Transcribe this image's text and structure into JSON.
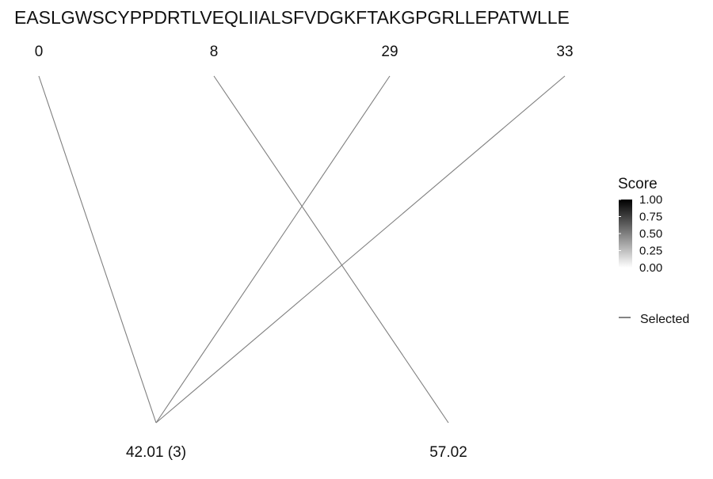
{
  "chart_data": {
    "type": "line",
    "title": "EASLGWSCYPPDRTLVEQLIIALSFVDGKFTAKGPGRLLEPATWLLE",
    "top_axis": {
      "labels": [
        "0",
        "8",
        "29",
        "33"
      ]
    },
    "bottom_axis": {
      "labels": [
        "42.01 (3)",
        "57.02"
      ]
    },
    "connections": [
      {
        "from": "0",
        "to": "42.01 (3)",
        "score": 0.5
      },
      {
        "from": "8",
        "to": "57.02",
        "score": 0.5
      },
      {
        "from": "29",
        "to": "42.01 (3)",
        "score": 0.5
      },
      {
        "from": "33",
        "to": "42.01 (3)",
        "score": 0.5
      }
    ],
    "legend": {
      "score": {
        "title": "Score",
        "ticks": [
          "1.00",
          "0.75",
          "0.50",
          "0.25",
          "0.00"
        ],
        "range": [
          0,
          1
        ],
        "color_low": "#ffffff",
        "color_high": "#000000"
      },
      "line_key": {
        "label": "Selected"
      },
      "placement": "right"
    },
    "line_color": "#7f7f7f",
    "grid": false
  }
}
